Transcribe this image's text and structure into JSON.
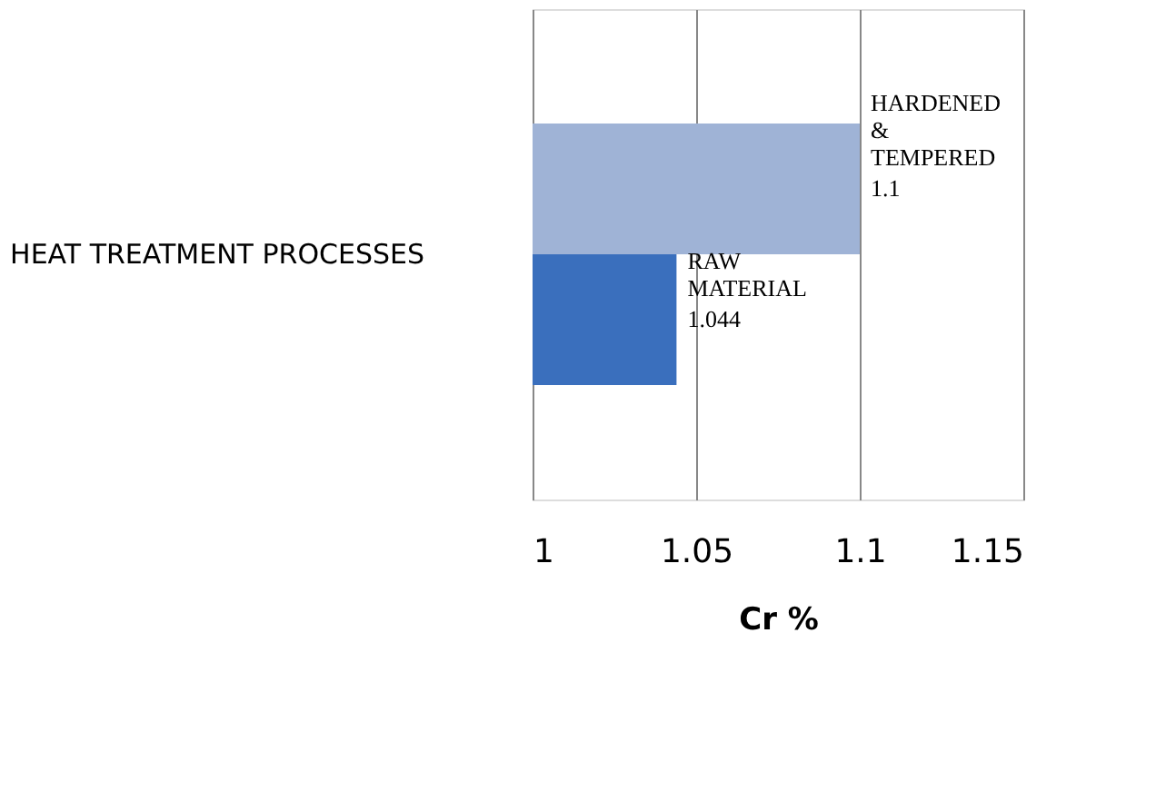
{
  "chart_data": {
    "type": "bar",
    "orientation": "horizontal",
    "categories": [
      "HEAT TREATMENT PROCESSES"
    ],
    "series": [
      {
        "name": "HARDENED & TEMPERED",
        "color": "#9fb3d6",
        "values": [
          1.1
        ]
      },
      {
        "name": "RAW MATERIAL",
        "color": "#3a6fbd",
        "values": [
          1.044
        ]
      }
    ],
    "xlabel": "Cr  %",
    "xlim": [
      1,
      1.15
    ],
    "xticks": [
      1,
      1.05,
      1.1,
      1.15
    ],
    "grid": "x",
    "legend": false,
    "data_labels": true
  }
}
